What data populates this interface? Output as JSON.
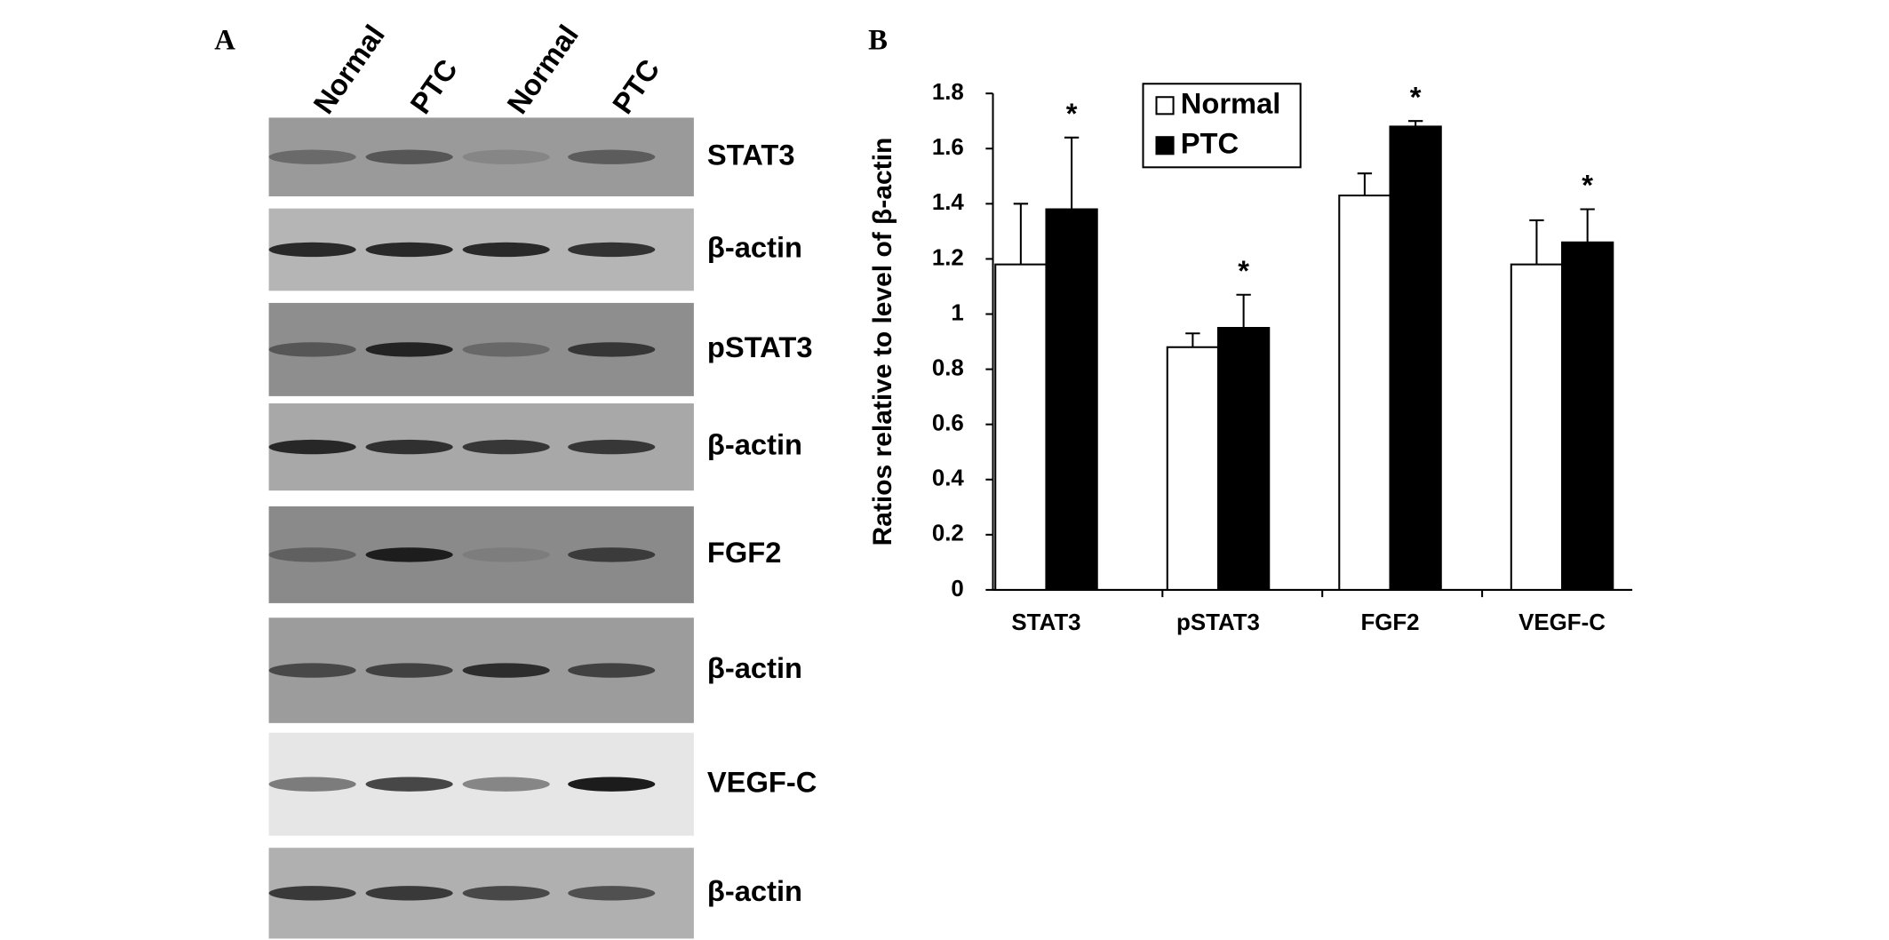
{
  "panel_a": {
    "label": "A",
    "lanes": [
      "Normal",
      "PTC",
      "Normal",
      "PTC"
    ],
    "blots": [
      "STAT3",
      "β-actin",
      "pSTAT3",
      "β-actin",
      "FGF2",
      "β-actin",
      "VEGF-C",
      "β-actin"
    ]
  },
  "chart_data": {
    "type": "bar",
    "panel_label": "B",
    "y_label": "Ratios relative to level of β-actin",
    "categories": [
      "STAT3",
      "pSTAT3",
      "FGF2",
      "VEGF-C"
    ],
    "series": [
      {
        "name": "Normal",
        "color": "#ffffff",
        "values": [
          1.18,
          0.88,
          1.43,
          1.18
        ],
        "errors": [
          0.22,
          0.05,
          0.08,
          0.16
        ]
      },
      {
        "name": "PTC",
        "color": "#000000",
        "values": [
          1.38,
          0.95,
          1.68,
          1.26
        ],
        "errors": [
          0.26,
          0.12,
          0.02,
          0.12
        ],
        "significance": [
          "*",
          "*",
          "*",
          "*"
        ]
      }
    ],
    "ylim": [
      0,
      1.8
    ],
    "yticks": [
      0,
      0.2,
      0.4,
      0.6,
      0.8,
      1,
      1.2,
      1.4,
      1.6,
      1.8
    ],
    "legend": "top-left",
    "grid": false
  }
}
